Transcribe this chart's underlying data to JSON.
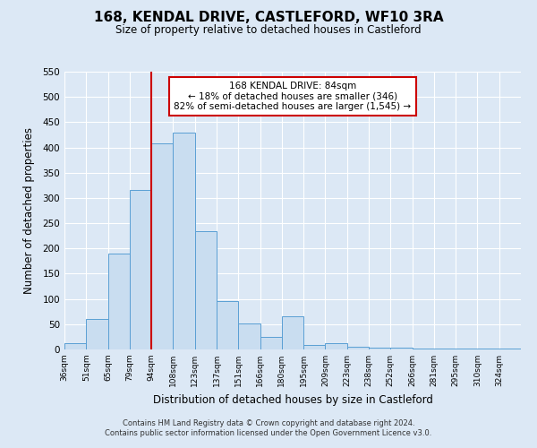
{
  "title": "168, KENDAL DRIVE, CASTLEFORD, WF10 3RA",
  "subtitle": "Size of property relative to detached houses in Castleford",
  "xlabel": "Distribution of detached houses by size in Castleford",
  "ylabel": "Number of detached properties",
  "footer_line1": "Contains HM Land Registry data © Crown copyright and database right 2024.",
  "footer_line2": "Contains public sector information licensed under the Open Government Licence v3.0.",
  "bin_labels": [
    "36sqm",
    "51sqm",
    "65sqm",
    "79sqm",
    "94sqm",
    "108sqm",
    "123sqm",
    "137sqm",
    "151sqm",
    "166sqm",
    "180sqm",
    "195sqm",
    "209sqm",
    "223sqm",
    "238sqm",
    "252sqm",
    "266sqm",
    "281sqm",
    "295sqm",
    "310sqm",
    "324sqm"
  ],
  "bar_heights": [
    12,
    60,
    190,
    315,
    408,
    430,
    235,
    95,
    52,
    25,
    65,
    8,
    12,
    5,
    3,
    3,
    2,
    2,
    2,
    2,
    2
  ],
  "bar_color": "#c9ddf0",
  "bar_edge_color": "#5a9fd4",
  "ylim": [
    0,
    550
  ],
  "yticks": [
    0,
    50,
    100,
    150,
    200,
    250,
    300,
    350,
    400,
    450,
    500,
    550
  ],
  "property_line_color": "#cc0000",
  "annotation_title": "168 KENDAL DRIVE: 84sqm",
  "annotation_line1": "← 18% of detached houses are smaller (346)",
  "annotation_line2": "82% of semi-detached houses are larger (1,545) →",
  "annotation_box_edge_color": "#cc0000",
  "background_color": "#dce8f5",
  "plot_bg_color": "#dce8f5",
  "n_bins": 21,
  "bin_width": 14
}
